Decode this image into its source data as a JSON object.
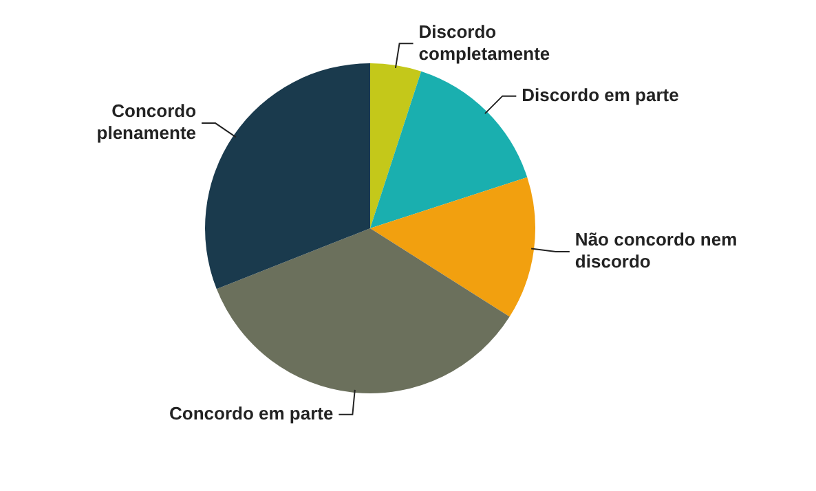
{
  "chart_data": {
    "type": "pie",
    "categories": [
      "Discordo\ncompletamente",
      "Discordo em parte",
      "Não concordo nem\ndiscordo",
      "Concordo em parte",
      "Concordo\nplenamente"
    ],
    "values": [
      5,
      15,
      14,
      35,
      31
    ],
    "colors": [
      "#c4c81a",
      "#1aafaf",
      "#f2a00f",
      "#6b705c",
      "#1a3a4d"
    ],
    "legend": false
  }
}
